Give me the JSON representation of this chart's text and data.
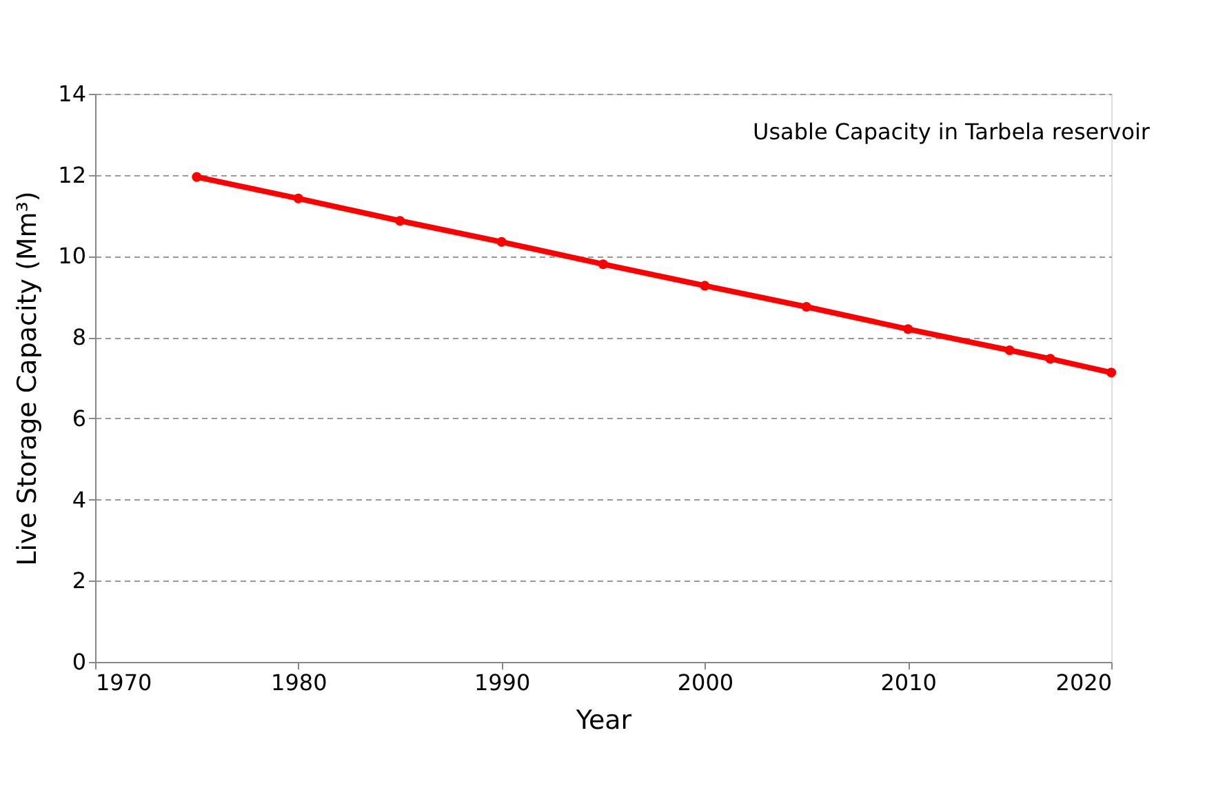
{
  "chart_data": {
    "type": "line",
    "xlabel": "Year",
    "ylabel": "Live Storage Capacity  (Mm³)",
    "annotations": [
      "Usable Capacity in Tarbela reservoir"
    ],
    "x": [
      1975,
      1980,
      1985,
      1990,
      1995,
      2000,
      2005,
      2010,
      2015,
      2017,
      2020
    ],
    "series": [
      {
        "color": "#ff0000",
        "values": [
          11.95,
          11.42,
          10.87,
          10.35,
          9.8,
          9.27,
          8.75,
          8.2,
          7.68,
          7.47,
          7.13
        ]
      }
    ],
    "xlim": [
      1970,
      2020
    ],
    "xticks": [
      1970,
      1980,
      1990,
      2000,
      2010,
      2020
    ],
    "ylim": [
      0,
      14
    ],
    "yticks": [
      0,
      2,
      4,
      6,
      8,
      10,
      12,
      14
    ],
    "grid": "y",
    "marker": "circle",
    "line_style": "solid"
  }
}
